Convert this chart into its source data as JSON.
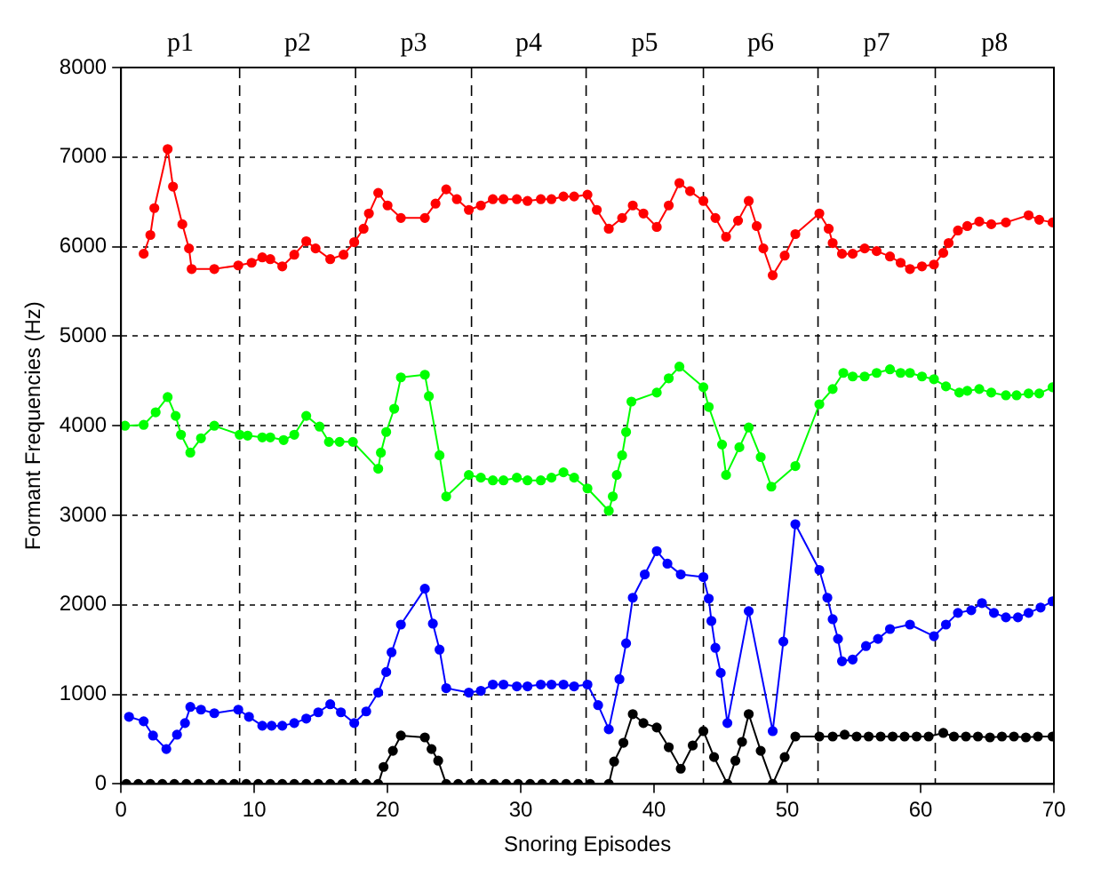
{
  "chart_data": {
    "type": "line",
    "xlabel": "Snoring Episodes",
    "ylabel": "Formant Frequencies (Hz)",
    "xlim": [
      0,
      70
    ],
    "xticks": [
      0,
      10,
      20,
      30,
      40,
      50,
      60,
      70
    ],
    "ylim": [
      0,
      8000
    ],
    "yticks": [
      0,
      1000,
      2000,
      3000,
      4000,
      5000,
      6000,
      7000,
      8000
    ],
    "grid": "y",
    "legend": false,
    "marker": "circle",
    "line_style": "solid",
    "ref_lines": [
      {
        "axis": "x",
        "value": 8.9,
        "line_style": "dashed"
      },
      {
        "axis": "x",
        "value": 17.6,
        "line_style": "dashed"
      },
      {
        "axis": "x",
        "value": 26.3,
        "line_style": "dashed"
      },
      {
        "axis": "x",
        "value": 34.9,
        "line_style": "dashed"
      },
      {
        "axis": "x",
        "value": 43.7,
        "line_style": "dashed"
      },
      {
        "axis": "x",
        "value": 52.3,
        "line_style": "dashed"
      },
      {
        "axis": "x",
        "value": 61.1,
        "line_style": "dashed"
      }
    ],
    "annotations": [
      "p1",
      "p2",
      "p3",
      "p4",
      "p5",
      "p6",
      "p7",
      "p8"
    ],
    "series": [
      {
        "color": "#ff0000",
        "x": [
          1.7,
          2.2,
          2.5,
          3.5,
          3.9,
          4.6,
          5.1,
          5.3,
          7.0,
          8.8,
          9.8,
          10.6,
          11.2,
          12.1,
          13.0,
          13.9,
          14.6,
          15.7,
          16.7,
          17.5,
          18.2,
          18.6,
          19.3,
          20.0,
          21.0,
          22.8,
          23.6,
          24.4,
          25.2,
          26.1,
          27.0,
          27.9,
          28.7,
          29.7,
          30.5,
          31.5,
          32.3,
          33.2,
          34.0,
          35.0,
          35.7,
          36.6,
          37.6,
          38.4,
          39.2,
          40.2,
          41.1,
          41.9,
          42.7,
          43.7,
          44.6,
          45.4,
          46.3,
          47.1,
          47.7,
          48.2,
          48.9,
          49.8,
          50.6,
          52.4,
          53.1,
          53.4,
          54.1,
          54.9,
          55.8,
          56.7,
          57.7,
          58.5,
          59.2,
          60.1,
          61.0,
          61.7,
          62.1,
          62.8,
          63.5,
          64.4,
          65.3,
          66.4,
          68.1,
          68.9,
          69.9
        ],
        "values": [
          5920,
          6130,
          6430,
          7090,
          6670,
          6250,
          5980,
          5750,
          5750,
          5790,
          5820,
          5880,
          5860,
          5780,
          5910,
          6060,
          5980,
          5860,
          5910,
          6050,
          6200,
          6370,
          6600,
          6460,
          6320,
          6320,
          6480,
          6640,
          6530,
          6410,
          6460,
          6530,
          6530,
          6530,
          6510,
          6530,
          6530,
          6560,
          6560,
          6580,
          6410,
          6200,
          6320,
          6460,
          6370,
          6220,
          6460,
          6710,
          6620,
          6510,
          6320,
          6110,
          6290,
          6510,
          6230,
          5980,
          5680,
          5900,
          6140,
          6370,
          6200,
          6040,
          5920,
          5920,
          5980,
          5950,
          5890,
          5820,
          5750,
          5780,
          5800,
          5930,
          6040,
          6180,
          6230,
          6280,
          6250,
          6270,
          6350,
          6300,
          6270
        ]
      },
      {
        "color": "#00ff00",
        "x": [
          0.3,
          1.7,
          2.6,
          3.5,
          4.1,
          4.5,
          5.2,
          6.0,
          7.0,
          8.9,
          9.5,
          10.6,
          11.2,
          12.2,
          13.0,
          13.9,
          14.9,
          15.6,
          16.4,
          17.4,
          19.3,
          19.5,
          19.9,
          20.5,
          21.0,
          22.8,
          23.1,
          23.9,
          24.4,
          26.1,
          27.0,
          27.9,
          28.7,
          29.7,
          30.5,
          31.5,
          32.3,
          33.2,
          34.0,
          35.0,
          36.6,
          36.9,
          37.2,
          37.6,
          37.9,
          38.3,
          40.2,
          41.1,
          41.9,
          43.7,
          44.1,
          45.1,
          45.4,
          46.4,
          47.1,
          48.0,
          48.8,
          50.6,
          52.4,
          53.4,
          54.2,
          54.9,
          55.8,
          56.7,
          57.7,
          58.5,
          59.2,
          60.1,
          61.0,
          61.9,
          62.9,
          63.5,
          64.4,
          65.3,
          66.4,
          67.2,
          68.1,
          68.9,
          69.9
        ],
        "values": [
          4000,
          4010,
          4150,
          4320,
          4110,
          3900,
          3700,
          3860,
          4000,
          3900,
          3890,
          3870,
          3870,
          3840,
          3900,
          4110,
          3990,
          3820,
          3820,
          3820,
          3520,
          3700,
          3930,
          4190,
          4540,
          4570,
          4330,
          3670,
          3210,
          3450,
          3420,
          3390,
          3390,
          3420,
          3390,
          3390,
          3420,
          3480,
          3420,
          3300,
          3050,
          3210,
          3450,
          3670,
          3930,
          4270,
          4370,
          4530,
          4660,
          4430,
          4210,
          3790,
          3450,
          3760,
          3980,
          3650,
          3320,
          3550,
          4240,
          4410,
          4590,
          4550,
          4550,
          4590,
          4630,
          4590,
          4590,
          4550,
          4520,
          4440,
          4370,
          4390,
          4410,
          4370,
          4340,
          4340,
          4360,
          4360,
          4430
        ]
      },
      {
        "color": "#0000ff",
        "x": [
          0.6,
          1.7,
          2.4,
          3.4,
          4.2,
          4.8,
          5.2,
          6.0,
          7.0,
          8.8,
          9.6,
          10.6,
          11.3,
          12.1,
          13.0,
          13.9,
          14.8,
          15.7,
          16.5,
          17.5,
          18.4,
          19.3,
          19.9,
          20.3,
          21.0,
          22.8,
          23.4,
          23.9,
          24.4,
          26.1,
          27.0,
          27.9,
          28.7,
          29.7,
          30.5,
          31.5,
          32.3,
          33.2,
          34.0,
          35.0,
          35.8,
          36.6,
          37.4,
          37.9,
          38.4,
          39.3,
          40.2,
          41.0,
          42.0,
          43.7,
          44.1,
          44.3,
          44.6,
          45.0,
          45.5,
          47.1,
          48.9,
          49.7,
          50.6,
          52.4,
          53.0,
          53.4,
          53.8,
          54.1,
          54.9,
          55.9,
          56.8,
          57.7,
          59.2,
          61.0,
          61.9,
          62.8,
          63.8,
          64.6,
          65.5,
          66.4,
          67.3,
          68.1,
          69.0,
          69.9
        ],
        "values": [
          750,
          700,
          540,
          390,
          550,
          680,
          860,
          830,
          790,
          830,
          750,
          650,
          650,
          650,
          680,
          730,
          800,
          890,
          800,
          680,
          810,
          1020,
          1250,
          1470,
          1780,
          2180,
          1790,
          1500,
          1070,
          1020,
          1040,
          1110,
          1110,
          1090,
          1090,
          1110,
          1110,
          1110,
          1090,
          1110,
          880,
          610,
          1170,
          1570,
          2080,
          2340,
          2600,
          2460,
          2340,
          2310,
          2070,
          1820,
          1520,
          1240,
          680,
          1930,
          590,
          1590,
          2900,
          2390,
          2080,
          1840,
          1620,
          1370,
          1390,
          1540,
          1620,
          1730,
          1780,
          1650,
          1780,
          1910,
          1940,
          2020,
          1910,
          1860,
          1860,
          1910,
          1970,
          2040
        ]
      },
      {
        "color": "#000000",
        "x": [
          0.4,
          1.3,
          2.2,
          3.1,
          4.0,
          4.9,
          5.8,
          6.7,
          7.6,
          8.5,
          9.4,
          10.3,
          11.2,
          12.1,
          13.0,
          13.9,
          14.8,
          15.7,
          16.6,
          17.5,
          18.4,
          19.3,
          19.7,
          20.4,
          21.0,
          22.8,
          23.3,
          23.8,
          24.4,
          25.3,
          26.2,
          27.1,
          28.0,
          28.9,
          29.8,
          30.7,
          31.6,
          32.5,
          33.4,
          34.3,
          35.2,
          36.6,
          37.0,
          37.7,
          38.4,
          39.2,
          40.2,
          41.1,
          42.0,
          42.9,
          43.7,
          44.5,
          45.5,
          46.1,
          46.6,
          47.1,
          48.0,
          48.9,
          49.8,
          50.6,
          52.4,
          53.4,
          54.3,
          55.2,
          56.1,
          57.0,
          57.9,
          58.8,
          59.7,
          60.6,
          61.7,
          62.5,
          63.4,
          64.3,
          65.2,
          66.1,
          67.0,
          67.9,
          68.8,
          69.9
        ],
        "values": [
          0,
          0,
          0,
          0,
          0,
          0,
          0,
          0,
          0,
          0,
          0,
          0,
          0,
          0,
          0,
          0,
          0,
          0,
          0,
          0,
          0,
          0,
          190,
          370,
          540,
          520,
          390,
          260,
          0,
          0,
          0,
          0,
          0,
          0,
          0,
          0,
          0,
          0,
          0,
          0,
          0,
          0,
          250,
          460,
          780,
          680,
          630,
          410,
          170,
          430,
          590,
          300,
          0,
          260,
          470,
          780,
          370,
          0,
          300,
          530,
          530,
          530,
          550,
          530,
          530,
          530,
          530,
          530,
          530,
          530,
          570,
          530,
          530,
          530,
          520,
          530,
          530,
          520,
          530,
          530
        ]
      }
    ]
  }
}
